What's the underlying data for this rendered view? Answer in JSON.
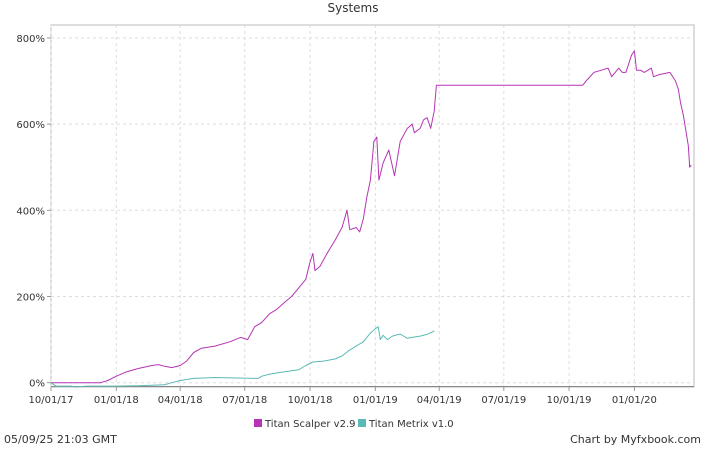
{
  "chart_data": {
    "type": "line",
    "title": "Systems",
    "xlabel": "",
    "ylabel": "",
    "x_ticks": [
      "10/01/17",
      "01/01/18",
      "04/01/18",
      "07/01/18",
      "10/01/18",
      "01/01/19",
      "04/01/19",
      "07/01/19",
      "10/01/19",
      "01/01/20"
    ],
    "xlim": [
      "2017-10-01",
      "2020-03-25"
    ],
    "y_ticks": [
      "0%",
      "200%",
      "400%",
      "600%",
      "800%"
    ],
    "ylim": [
      -10,
      830
    ],
    "grid": true,
    "legend": "bottom",
    "series": [
      {
        "name": "Titan Scalper v2.9",
        "color": "#b535b5",
        "points": [
          [
            "2017-10-01",
            0
          ],
          [
            "2017-11-15",
            0
          ],
          [
            "2017-12-10",
            0
          ],
          [
            "2017-12-20",
            5
          ],
          [
            "2018-01-01",
            15
          ],
          [
            "2018-01-15",
            25
          ],
          [
            "2018-02-01",
            33
          ],
          [
            "2018-02-20",
            40
          ],
          [
            "2018-03-01",
            42
          ],
          [
            "2018-03-10",
            38
          ],
          [
            "2018-03-20",
            35
          ],
          [
            "2018-04-01",
            40
          ],
          [
            "2018-04-10",
            50
          ],
          [
            "2018-04-20",
            70
          ],
          [
            "2018-05-01",
            80
          ],
          [
            "2018-05-20",
            85
          ],
          [
            "2018-06-10",
            95
          ],
          [
            "2018-06-25",
            105
          ],
          [
            "2018-07-05",
            100
          ],
          [
            "2018-07-15",
            130
          ],
          [
            "2018-07-25",
            140
          ],
          [
            "2018-08-05",
            160
          ],
          [
            "2018-08-15",
            170
          ],
          [
            "2018-08-25",
            185
          ],
          [
            "2018-09-05",
            200
          ],
          [
            "2018-09-15",
            220
          ],
          [
            "2018-09-25",
            240
          ],
          [
            "2018-10-01",
            280
          ],
          [
            "2018-10-05",
            300
          ],
          [
            "2018-10-08",
            260
          ],
          [
            "2018-10-15",
            270
          ],
          [
            "2018-10-25",
            300
          ],
          [
            "2018-11-05",
            330
          ],
          [
            "2018-11-15",
            360
          ],
          [
            "2018-11-22",
            400
          ],
          [
            "2018-11-26",
            355
          ],
          [
            "2018-12-05",
            360
          ],
          [
            "2018-12-10",
            350
          ],
          [
            "2018-12-15",
            380
          ],
          [
            "2018-12-20",
            430
          ],
          [
            "2018-12-25",
            470
          ],
          [
            "2018-12-30",
            560
          ],
          [
            "2019-01-03",
            570
          ],
          [
            "2019-01-06",
            470
          ],
          [
            "2019-01-12",
            510
          ],
          [
            "2019-01-20",
            540
          ],
          [
            "2019-01-28",
            480
          ],
          [
            "2019-02-05",
            560
          ],
          [
            "2019-02-15",
            590
          ],
          [
            "2019-02-22",
            600
          ],
          [
            "2019-02-25",
            580
          ],
          [
            "2019-03-05",
            590
          ],
          [
            "2019-03-10",
            610
          ],
          [
            "2019-03-15",
            615
          ],
          [
            "2019-03-20",
            590
          ],
          [
            "2019-03-25",
            630
          ],
          [
            "2019-03-28",
            690
          ],
          [
            "2019-10-20",
            690
          ],
          [
            "2019-10-25",
            700
          ],
          [
            "2019-11-05",
            720
          ],
          [
            "2019-11-15",
            725
          ],
          [
            "2019-11-25",
            730
          ],
          [
            "2019-11-30",
            710
          ],
          [
            "2019-12-05",
            720
          ],
          [
            "2019-12-10",
            730
          ],
          [
            "2019-12-15",
            720
          ],
          [
            "2019-12-20",
            720
          ],
          [
            "2019-12-28",
            760
          ],
          [
            "2020-01-01",
            770
          ],
          [
            "2020-01-04",
            725
          ],
          [
            "2020-01-10",
            725
          ],
          [
            "2020-01-15",
            720
          ],
          [
            "2020-01-25",
            730
          ],
          [
            "2020-01-28",
            710
          ],
          [
            "2020-02-05",
            715
          ],
          [
            "2020-02-20",
            720
          ],
          [
            "2020-02-28",
            700
          ],
          [
            "2020-03-03",
            680
          ],
          [
            "2020-03-06",
            650
          ],
          [
            "2020-03-10",
            620
          ],
          [
            "2020-03-14",
            580
          ],
          [
            "2020-03-17",
            550
          ],
          [
            "2020-03-19",
            500
          ],
          [
            "2020-03-21",
            505
          ]
        ]
      },
      {
        "name": "Titan Metrix v1.0",
        "color": "#5bbab5",
        "points": [
          [
            "2017-10-01",
            0
          ],
          [
            "2017-10-08",
            -8
          ],
          [
            "2017-10-30",
            -8
          ],
          [
            "2017-11-05",
            -10
          ],
          [
            "2017-11-20",
            -8
          ],
          [
            "2017-12-10",
            -8
          ],
          [
            "2018-01-01",
            -8
          ],
          [
            "2018-02-01",
            -7
          ],
          [
            "2018-03-10",
            -5
          ],
          [
            "2018-03-20",
            0
          ],
          [
            "2018-04-01",
            5
          ],
          [
            "2018-04-20",
            10
          ],
          [
            "2018-05-20",
            12
          ],
          [
            "2018-07-20",
            10
          ],
          [
            "2018-07-25",
            15
          ],
          [
            "2018-08-05",
            20
          ],
          [
            "2018-08-25",
            25
          ],
          [
            "2018-09-15",
            30
          ],
          [
            "2018-09-25",
            40
          ],
          [
            "2018-10-05",
            48
          ],
          [
            "2018-10-20",
            50
          ],
          [
            "2018-11-05",
            55
          ],
          [
            "2018-11-15",
            62
          ],
          [
            "2018-11-25",
            75
          ],
          [
            "2018-12-05",
            85
          ],
          [
            "2018-12-15",
            95
          ],
          [
            "2018-12-25",
            115
          ],
          [
            "2019-01-01",
            125
          ],
          [
            "2019-01-05",
            130
          ],
          [
            "2019-01-08",
            100
          ],
          [
            "2019-01-12",
            110
          ],
          [
            "2019-01-18",
            100
          ],
          [
            "2019-01-25",
            108
          ],
          [
            "2019-02-05",
            113
          ],
          [
            "2019-02-15",
            103
          ],
          [
            "2019-02-25",
            106
          ],
          [
            "2019-03-05",
            108
          ],
          [
            "2019-03-15",
            112
          ],
          [
            "2019-03-25",
            120
          ]
        ]
      }
    ]
  },
  "footer": {
    "timestamp": "05/09/25 21:03 GMT",
    "credit": "Chart by Myfxbook.com"
  }
}
